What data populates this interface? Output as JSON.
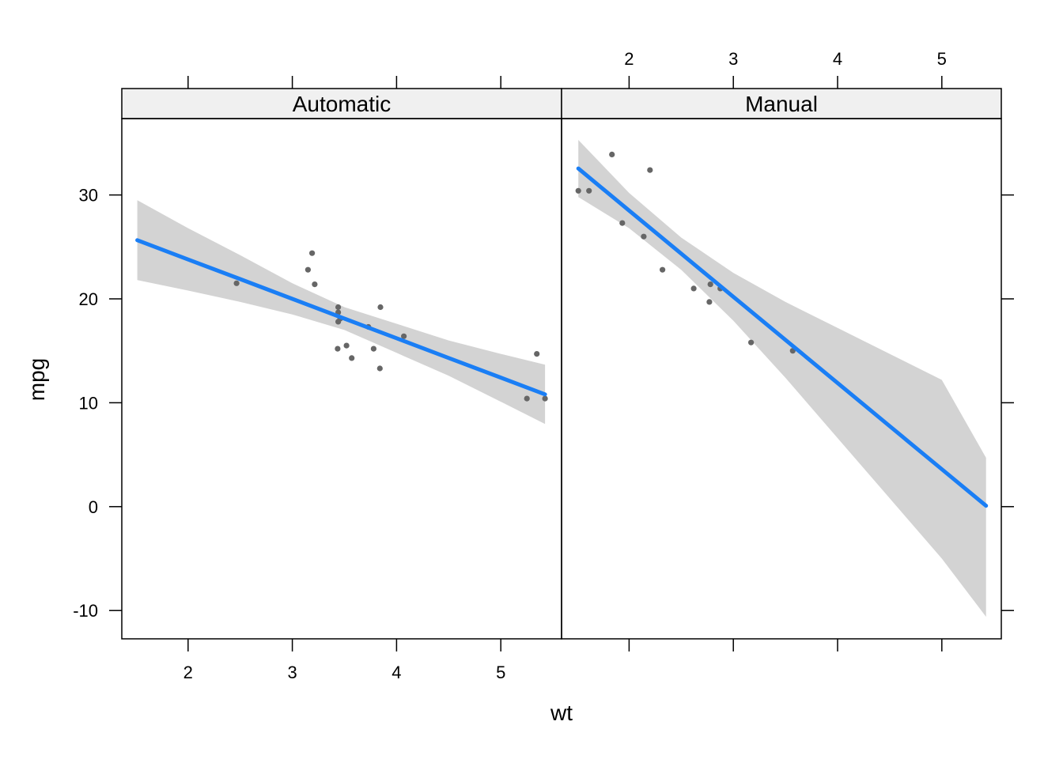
{
  "chart_data": {
    "type": "scatter",
    "xlabel": "wt",
    "ylabel": "mpg",
    "xlim": [
      1.358,
      5.66
    ],
    "ylim": [
      -12.9,
      37.2
    ],
    "x_ticks": [
      2,
      3,
      4,
      5
    ],
    "y_ticks": [
      -10,
      0,
      10,
      20,
      30
    ],
    "colors": {
      "points": "#666666",
      "fit_line": "#1a7ef5",
      "confidence_band": "#d3d3d3",
      "strip_background": "#f0f0f0"
    },
    "panels": [
      {
        "strip": "Automatic",
        "points": [
          {
            "x": 2.465,
            "y": 21.5
          },
          {
            "x": 3.15,
            "y": 22.8
          },
          {
            "x": 3.19,
            "y": 24.4
          },
          {
            "x": 3.215,
            "y": 21.4
          },
          {
            "x": 3.44,
            "y": 18.7
          },
          {
            "x": 3.44,
            "y": 19.2
          },
          {
            "x": 3.44,
            "y": 17.8
          },
          {
            "x": 3.46,
            "y": 18.1
          },
          {
            "x": 3.57,
            "y": 14.3
          },
          {
            "x": 3.52,
            "y": 15.5
          },
          {
            "x": 3.435,
            "y": 15.2
          },
          {
            "x": 3.73,
            "y": 17.3
          },
          {
            "x": 3.78,
            "y": 15.2
          },
          {
            "x": 3.84,
            "y": 13.3
          },
          {
            "x": 3.845,
            "y": 19.2
          },
          {
            "x": 4.07,
            "y": 16.4
          },
          {
            "x": 5.25,
            "y": 10.4
          },
          {
            "x": 5.345,
            "y": 14.7
          },
          {
            "x": 5.424,
            "y": 10.4
          }
        ],
        "fit": {
          "x": [
            1.513,
            2.0,
            2.5,
            3.0,
            3.5,
            4.0,
            4.5,
            5.0,
            5.424
          ],
          "y": [
            25.65,
            23.79,
            21.9,
            20.0,
            18.1,
            16.21,
            14.31,
            12.42,
            10.81
          ]
        },
        "band": {
          "x": [
            1.513,
            2.0,
            2.5,
            3.0,
            3.5,
            4.0,
            4.5,
            5.0,
            5.424
          ],
          "lower": [
            21.8,
            20.8,
            19.7,
            18.5,
            17.0,
            14.8,
            12.6,
            10.1,
            7.95
          ],
          "upper": [
            29.5,
            26.8,
            24.2,
            21.5,
            19.2,
            17.6,
            16.0,
            14.7,
            13.67
          ]
        }
      },
      {
        "strip": "Manual",
        "points": [
          {
            "x": 1.513,
            "y": 30.4
          },
          {
            "x": 1.615,
            "y": 30.4
          },
          {
            "x": 1.835,
            "y": 33.9
          },
          {
            "x": 1.935,
            "y": 27.3
          },
          {
            "x": 2.14,
            "y": 26.0
          },
          {
            "x": 2.2,
            "y": 32.4
          },
          {
            "x": 2.32,
            "y": 22.8
          },
          {
            "x": 2.62,
            "y": 21.0
          },
          {
            "x": 2.77,
            "y": 19.7
          },
          {
            "x": 2.78,
            "y": 21.4
          },
          {
            "x": 2.875,
            "y": 21.0
          },
          {
            "x": 3.17,
            "y": 15.8
          },
          {
            "x": 3.57,
            "y": 15.0
          }
        ],
        "fit": {
          "x": [
            1.513,
            2.0,
            2.5,
            3.0,
            3.5,
            4.0,
            4.5,
            5.0,
            5.424
          ],
          "y": [
            32.55,
            28.5,
            24.35,
            20.2,
            16.05,
            11.9,
            7.75,
            3.6,
            0.08
          ]
        },
        "band": {
          "x": [
            1.513,
            2.0,
            2.5,
            3.0,
            3.5,
            4.0,
            4.5,
            5.0,
            5.424
          ],
          "lower": [
            29.8,
            26.8,
            22.8,
            17.9,
            12.4,
            6.6,
            0.8,
            -5.0,
            -10.6
          ],
          "upper": [
            35.3,
            30.2,
            25.9,
            22.5,
            19.7,
            17.2,
            14.7,
            12.2,
            4.7
          ]
        }
      }
    ]
  }
}
